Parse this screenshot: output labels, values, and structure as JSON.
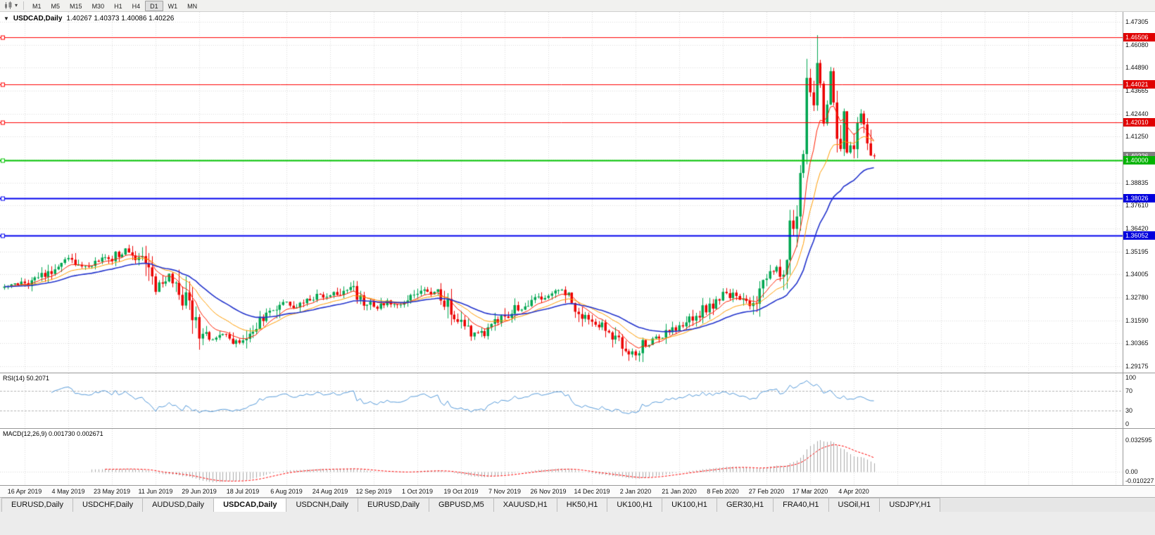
{
  "icons": {
    "collapse": "▼",
    "dropdown": "▾"
  },
  "colors": {
    "up": "#00A651",
    "down": "#EC0000",
    "grid": "#DADADA",
    "rsi_line": "#5599D8",
    "macd_hist": "#A8A8A8",
    "macd_signal": "#FF0000"
  },
  "toolbar": {
    "timeframes": [
      "M1",
      "M5",
      "M15",
      "M30",
      "H1",
      "H4",
      "D1",
      "W1",
      "MN"
    ],
    "active": "D1"
  },
  "chart": {
    "symbol": "USDCAD,Daily",
    "ohlc_text": "1.40267 1.40373 1.40086 1.40226",
    "axis_top_price": 1.47305,
    "axis_step": 0.012087,
    "price_max": 1.47821,
    "price_min": 1.28842,
    "axis_labels": [
      "1.47305",
      "1.46080",
      "1.44890",
      "1.43665",
      "1.42440",
      "1.41250",
      "",
      "1.38835",
      "1.37610",
      "1.36420",
      "1.35195",
      "1.34005",
      "1.32780",
      "1.31590",
      "1.30365",
      "1.29175"
    ],
    "hlines": [
      {
        "price": 1.46506,
        "label": "1.46506",
        "color": "#FF0000",
        "width": 1
      },
      {
        "price": 1.44021,
        "label": "1.44021",
        "color": "#FF0000",
        "width": 1
      },
      {
        "price": 1.4201,
        "label": "1.42010",
        "color": "#FF0000",
        "width": 1
      },
      {
        "price": 1.4,
        "label": "1.40000",
        "color": "#00C300",
        "width": 2
      },
      {
        "price": 1.38026,
        "label": "1.38026",
        "color": "#0000EE",
        "width": 2
      },
      {
        "price": 1.36052,
        "label": "1.36052",
        "color": "#0000EE",
        "width": 2
      }
    ],
    "badges": [
      {
        "label": "1.46506",
        "price": 1.46506,
        "color": "#E00000"
      },
      {
        "label": "1.44021",
        "price": 1.44021,
        "color": "#E00000"
      },
      {
        "label": "1.42010",
        "price": 1.4201,
        "color": "#E00000"
      },
      {
        "label": "1.38026",
        "price": 1.38026,
        "color": "#0000DD"
      },
      {
        "label": "1.36052",
        "price": 1.36052,
        "color": "#0000DD"
      },
      {
        "label": "1.40226",
        "price": 1.40226,
        "color": "#808080"
      },
      {
        "label": "1.40000",
        "price": 1.4,
        "color": "#00B300"
      }
    ]
  },
  "chart_data": {
    "type": "candlestick",
    "symbol": "USDCAD",
    "timeframe": "Daily",
    "bars": 260,
    "left_offset_bars": 6,
    "bars_per_label": 13,
    "anchors": [
      [
        -6,
        1.333
      ],
      [
        0,
        1.335
      ],
      [
        4,
        1.3375
      ],
      [
        8,
        1.342
      ],
      [
        13,
        1.348
      ],
      [
        17,
        1.344
      ],
      [
        21,
        1.3465
      ],
      [
        26,
        1.349
      ],
      [
        30,
        1.353
      ],
      [
        33,
        1.3505
      ],
      [
        36,
        1.345
      ],
      [
        39,
        1.3335
      ],
      [
        43,
        1.339
      ],
      [
        46,
        1.333
      ],
      [
        49,
        1.321
      ],
      [
        52,
        1.3095
      ],
      [
        56,
        1.306
      ],
      [
        60,
        1.3085
      ],
      [
        63,
        1.304
      ],
      [
        65,
        1.306
      ],
      [
        68,
        1.3125
      ],
      [
        71,
        1.3165
      ],
      [
        74,
        1.3205
      ],
      [
        78,
        1.3265
      ],
      [
        81,
        1.323
      ],
      [
        84,
        1.327
      ],
      [
        88,
        1.329
      ],
      [
        91,
        1.3285
      ],
      [
        94,
        1.331
      ],
      [
        97,
        1.334
      ],
      [
        100,
        1.328
      ],
      [
        104,
        1.322
      ],
      [
        108,
        1.325
      ],
      [
        112,
        1.324
      ],
      [
        117,
        1.3295
      ],
      [
        120,
        1.332
      ],
      [
        124,
        1.329
      ],
      [
        127,
        1.321
      ],
      [
        130,
        1.313
      ],
      [
        134,
        1.308
      ],
      [
        137,
        1.3095
      ],
      [
        140,
        1.314
      ],
      [
        143,
        1.318
      ],
      [
        147,
        1.323
      ],
      [
        150,
        1.3255
      ],
      [
        153,
        1.328
      ],
      [
        156,
        1.3295
      ],
      [
        160,
        1.331
      ],
      [
        163,
        1.325
      ],
      [
        166,
        1.3185
      ],
      [
        169,
        1.316
      ],
      [
        172,
        1.313
      ],
      [
        175,
        1.308
      ],
      [
        178,
        1.303
      ],
      [
        182,
        1.2975
      ],
      [
        185,
        1.305
      ],
      [
        188,
        1.3065
      ],
      [
        191,
        1.31
      ],
      [
        195,
        1.313
      ],
      [
        198,
        1.3155
      ],
      [
        201,
        1.32
      ],
      [
        204,
        1.3235
      ],
      [
        208,
        1.329
      ],
      [
        211,
        1.329
      ],
      [
        214,
        1.3255
      ],
      [
        217,
        1.3235
      ],
      [
        221,
        1.34
      ],
      [
        224,
        1.3425
      ],
      [
        226,
        1.3385
      ],
      [
        228,
        1.365
      ],
      [
        230,
        1.3755
      ],
      [
        231,
        1.392
      ],
      [
        232,
        1.4105
      ],
      [
        233,
        1.45
      ],
      [
        234,
        1.442
      ],
      [
        235,
        1.4255
      ],
      [
        236,
        1.448
      ],
      [
        237,
        1.439
      ],
      [
        238,
        1.4205
      ],
      [
        239,
        1.431
      ],
      [
        240,
        1.4455
      ],
      [
        241,
        1.435
      ],
      [
        242,
        1.4185
      ],
      [
        243,
        1.4105
      ],
      [
        244,
        1.422
      ],
      [
        245,
        1.4055
      ],
      [
        247,
        1.4105
      ],
      [
        249,
        1.4235
      ],
      [
        251,
        1.4155
      ],
      [
        252,
        1.406
      ],
      [
        253,
        1.40226
      ]
    ],
    "forced": {
      "max_high": 1.466,
      "min_low": 1.2949,
      "last": {
        "open": 1.40267,
        "high": 1.40373,
        "low": 1.40086,
        "close": 1.40226
      }
    },
    "moving_averages": [
      {
        "period": 8,
        "color": "#FF2000",
        "width": 1
      },
      {
        "period": 17,
        "color": "#FF9C00",
        "width": 1
      },
      {
        "period": 34,
        "color": "#2233CC",
        "width": 1.6
      }
    ],
    "indicators": [
      {
        "name": "RSI",
        "period": 14,
        "current": 50.2071
      },
      {
        "name": "MACD",
        "fast": 12,
        "slow": 26,
        "signal": 9,
        "values": [
          0.00173,
          0.002671
        ]
      }
    ]
  },
  "rsi": {
    "label_full": "RSI(14) 50.2071",
    "name": "RSI(14)",
    "value": "50.2071",
    "levels": [
      70,
      30
    ],
    "axis": [
      {
        "v": 100,
        "label": "100"
      },
      {
        "v": 70,
        "label": "70"
      },
      {
        "v": 30,
        "label": "30"
      },
      {
        "v": 0,
        "label": "0"
      }
    ]
  },
  "macd": {
    "label_full": "MACD(12,26,9) 0.001730 0.002671",
    "axis_top_label": "0.032595",
    "axis_zero_label": "0.00",
    "axis_bottom_label": "-0.010227"
  },
  "time_axis": {
    "labels": [
      "16 Apr 2019",
      "4 May 2019",
      "23 May 2019",
      "11 Jun 2019",
      "29 Jun 2019",
      "18 Jul 2019",
      "6 Aug 2019",
      "24 Aug 2019",
      "12 Sep 2019",
      "1 Oct 2019",
      "19 Oct 2019",
      "7 Nov 2019",
      "26 Nov 2019",
      "14 Dec 2019",
      "2 Jan 2020",
      "21 Jan 2020",
      "8 Feb 2020",
      "27 Feb 2020",
      "17 Mar 2020",
      "4 Apr 2020"
    ]
  },
  "tabs": {
    "active_index": 3,
    "items": [
      "EURUSD,Daily",
      "USDCHF,Daily",
      "AUDUSD,Daily",
      "USDCAD,Daily",
      "USDCNH,Daily",
      "EURUSD,Daily",
      "GBPUSD,M5",
      "XAUUSD,H1",
      "HK50,H1",
      "UK100,H1",
      "UK100,H1",
      "GER30,H1",
      "FRA40,H1",
      "USOil,H1",
      "USDJPY,H1"
    ]
  }
}
